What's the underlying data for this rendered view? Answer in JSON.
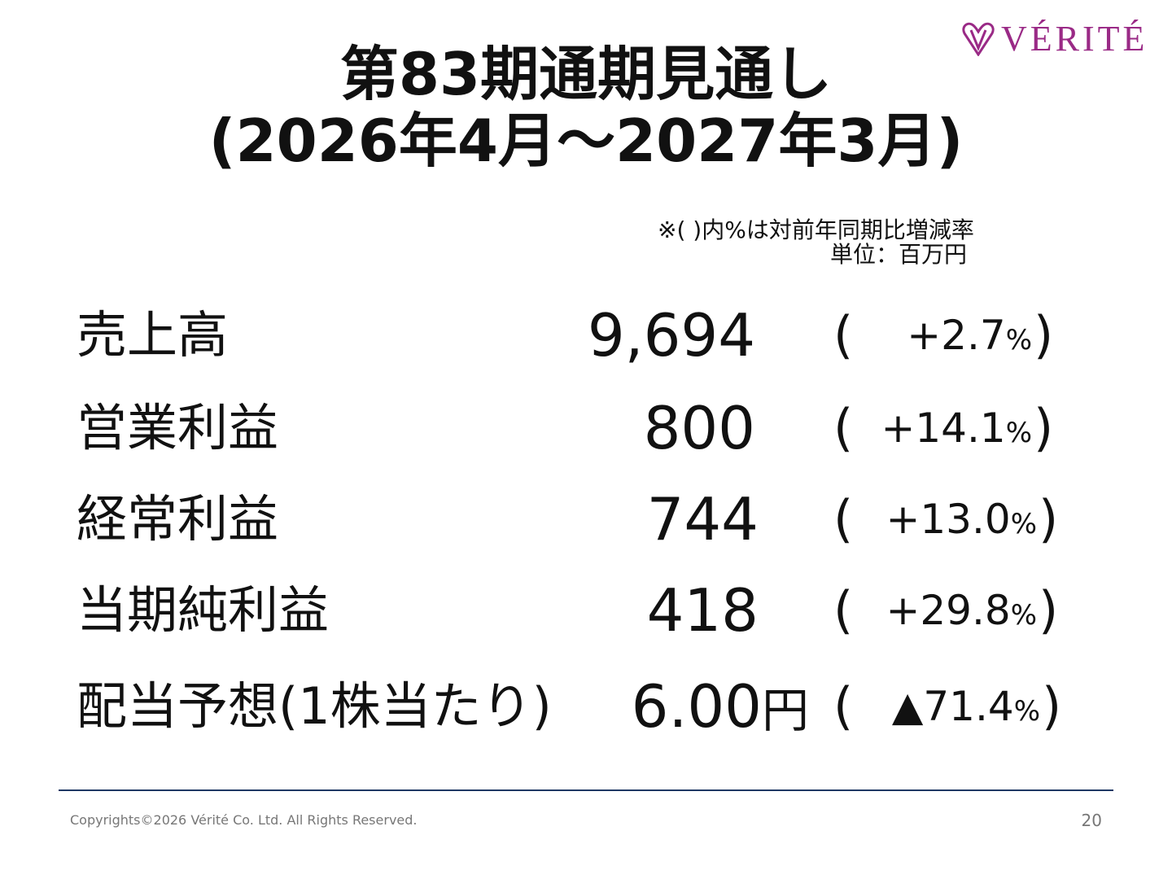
{
  "logo": {
    "text": "VÉRITÉ",
    "color": "#9a2a86"
  },
  "title": {
    "line1": "第83期通期見通し",
    "line2": "(2026年4月～2027年3月)"
  },
  "notes": {
    "percent_note": "※( )内%は対前年同期比増減率",
    "unit_note": "単位：百万円"
  },
  "rows": [
    {
      "label": "売上高",
      "value": "9,694",
      "unit": "",
      "change": "+2.7",
      "pct": "%"
    },
    {
      "label": "営業利益",
      "value": "800",
      "unit": "",
      "change": "+14.1",
      "pct": "%"
    },
    {
      "label": "経常利益",
      "value": "744",
      "unit": "",
      "change": "+13.0",
      "pct": "%"
    },
    {
      "label": "当期純利益",
      "value": "418",
      "unit": "",
      "change": "+29.8",
      "pct": "%"
    },
    {
      "label": "配当予想(1株当たり)",
      "value": "6.00",
      "unit": "円",
      "change": "▲71.4",
      "pct": "%"
    }
  ],
  "paren_open": "(",
  "paren_close": ")",
  "footer": {
    "copyright": "Copyrights©2026  Vérité Co. Ltd. All Rights Reserved.",
    "page_number": "20"
  },
  "colors": {
    "divider": "#1f3864",
    "footer_text": "#777777"
  }
}
